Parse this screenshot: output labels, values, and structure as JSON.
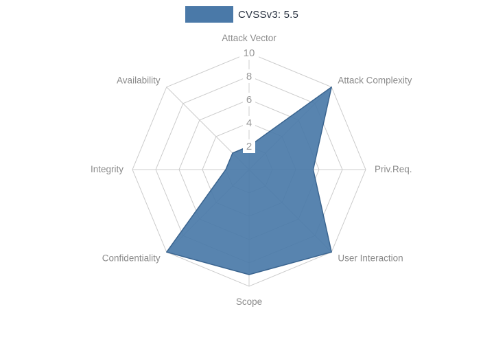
{
  "legend": {
    "label": "CVSSv3: 5.5",
    "swatch_color": "#4a79a8"
  },
  "chart_data": {
    "type": "radar",
    "title": "CVSSv3: 5.5",
    "categories": [
      "Attack Vector",
      "Attack Complexity",
      "Priv.Req.",
      "User Interaction",
      "Scope",
      "Confidentiality",
      "Integrity",
      "Availability"
    ],
    "series": [
      {
        "name": "CVSSv3: 5.5",
        "values": [
          2,
          10,
          5.5,
          10,
          9,
          10,
          2,
          2
        ]
      }
    ],
    "radial_ticks": [
      2,
      4,
      6,
      8,
      10
    ],
    "rlim": [
      0,
      10
    ],
    "grid": true,
    "legend_position": "top",
    "colors": {
      "fill": "#4a79a8",
      "stroke": "#3a648f",
      "grid_line": "#cccccc",
      "axis_label": "#8a8a8a",
      "tick_label": "#999999"
    }
  }
}
